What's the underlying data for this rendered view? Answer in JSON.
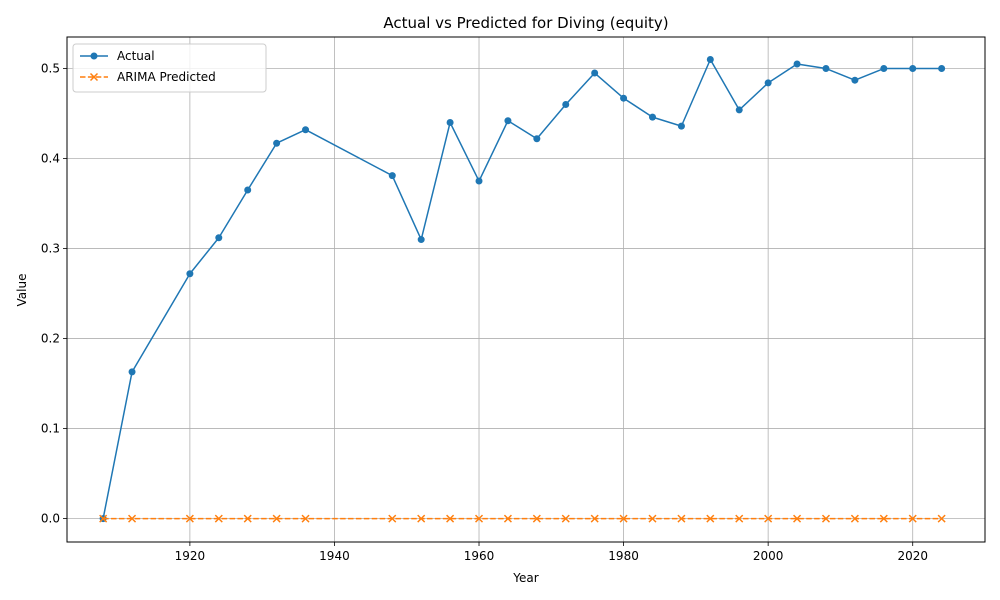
{
  "chart_data": {
    "type": "line",
    "title": "Actual vs Predicted for Diving (equity)",
    "xlabel": "Year",
    "ylabel": "Value",
    "xlim": [
      1903,
      2030
    ],
    "ylim": [
      -0.026,
      0.535
    ],
    "xticks": [
      1920,
      1940,
      1960,
      1980,
      2000,
      2020
    ],
    "yticks": [
      0.0,
      0.1,
      0.2,
      0.3,
      0.4,
      0.5
    ],
    "grid": true,
    "legend_position": "top-left",
    "x": [
      1908,
      1912,
      1920,
      1924,
      1928,
      1932,
      1936,
      1948,
      1952,
      1956,
      1960,
      1964,
      1968,
      1972,
      1976,
      1980,
      1984,
      1988,
      1992,
      1996,
      2000,
      2004,
      2008,
      2012,
      2016,
      2020,
      2024
    ],
    "series": [
      {
        "name": "Actual",
        "color": "#1f77b4",
        "marker": "circle",
        "line_style": "solid",
        "values": [
          0.0,
          0.163,
          0.272,
          0.312,
          0.365,
          0.417,
          0.432,
          0.381,
          0.31,
          0.44,
          0.375,
          0.442,
          0.422,
          0.46,
          0.495,
          0.467,
          0.446,
          0.436,
          0.51,
          0.454,
          0.484,
          0.505,
          0.5,
          0.487,
          0.5,
          0.5,
          0.5
        ]
      },
      {
        "name": "ARIMA Predicted",
        "color": "#ff7f0e",
        "marker": "x",
        "line_style": "dashed",
        "values": [
          0,
          0,
          0,
          0,
          0,
          0,
          0,
          0,
          0,
          0,
          0,
          0,
          0,
          0,
          0,
          0,
          0,
          0,
          0,
          0,
          0,
          0,
          0,
          0,
          0,
          0,
          0
        ]
      }
    ]
  }
}
